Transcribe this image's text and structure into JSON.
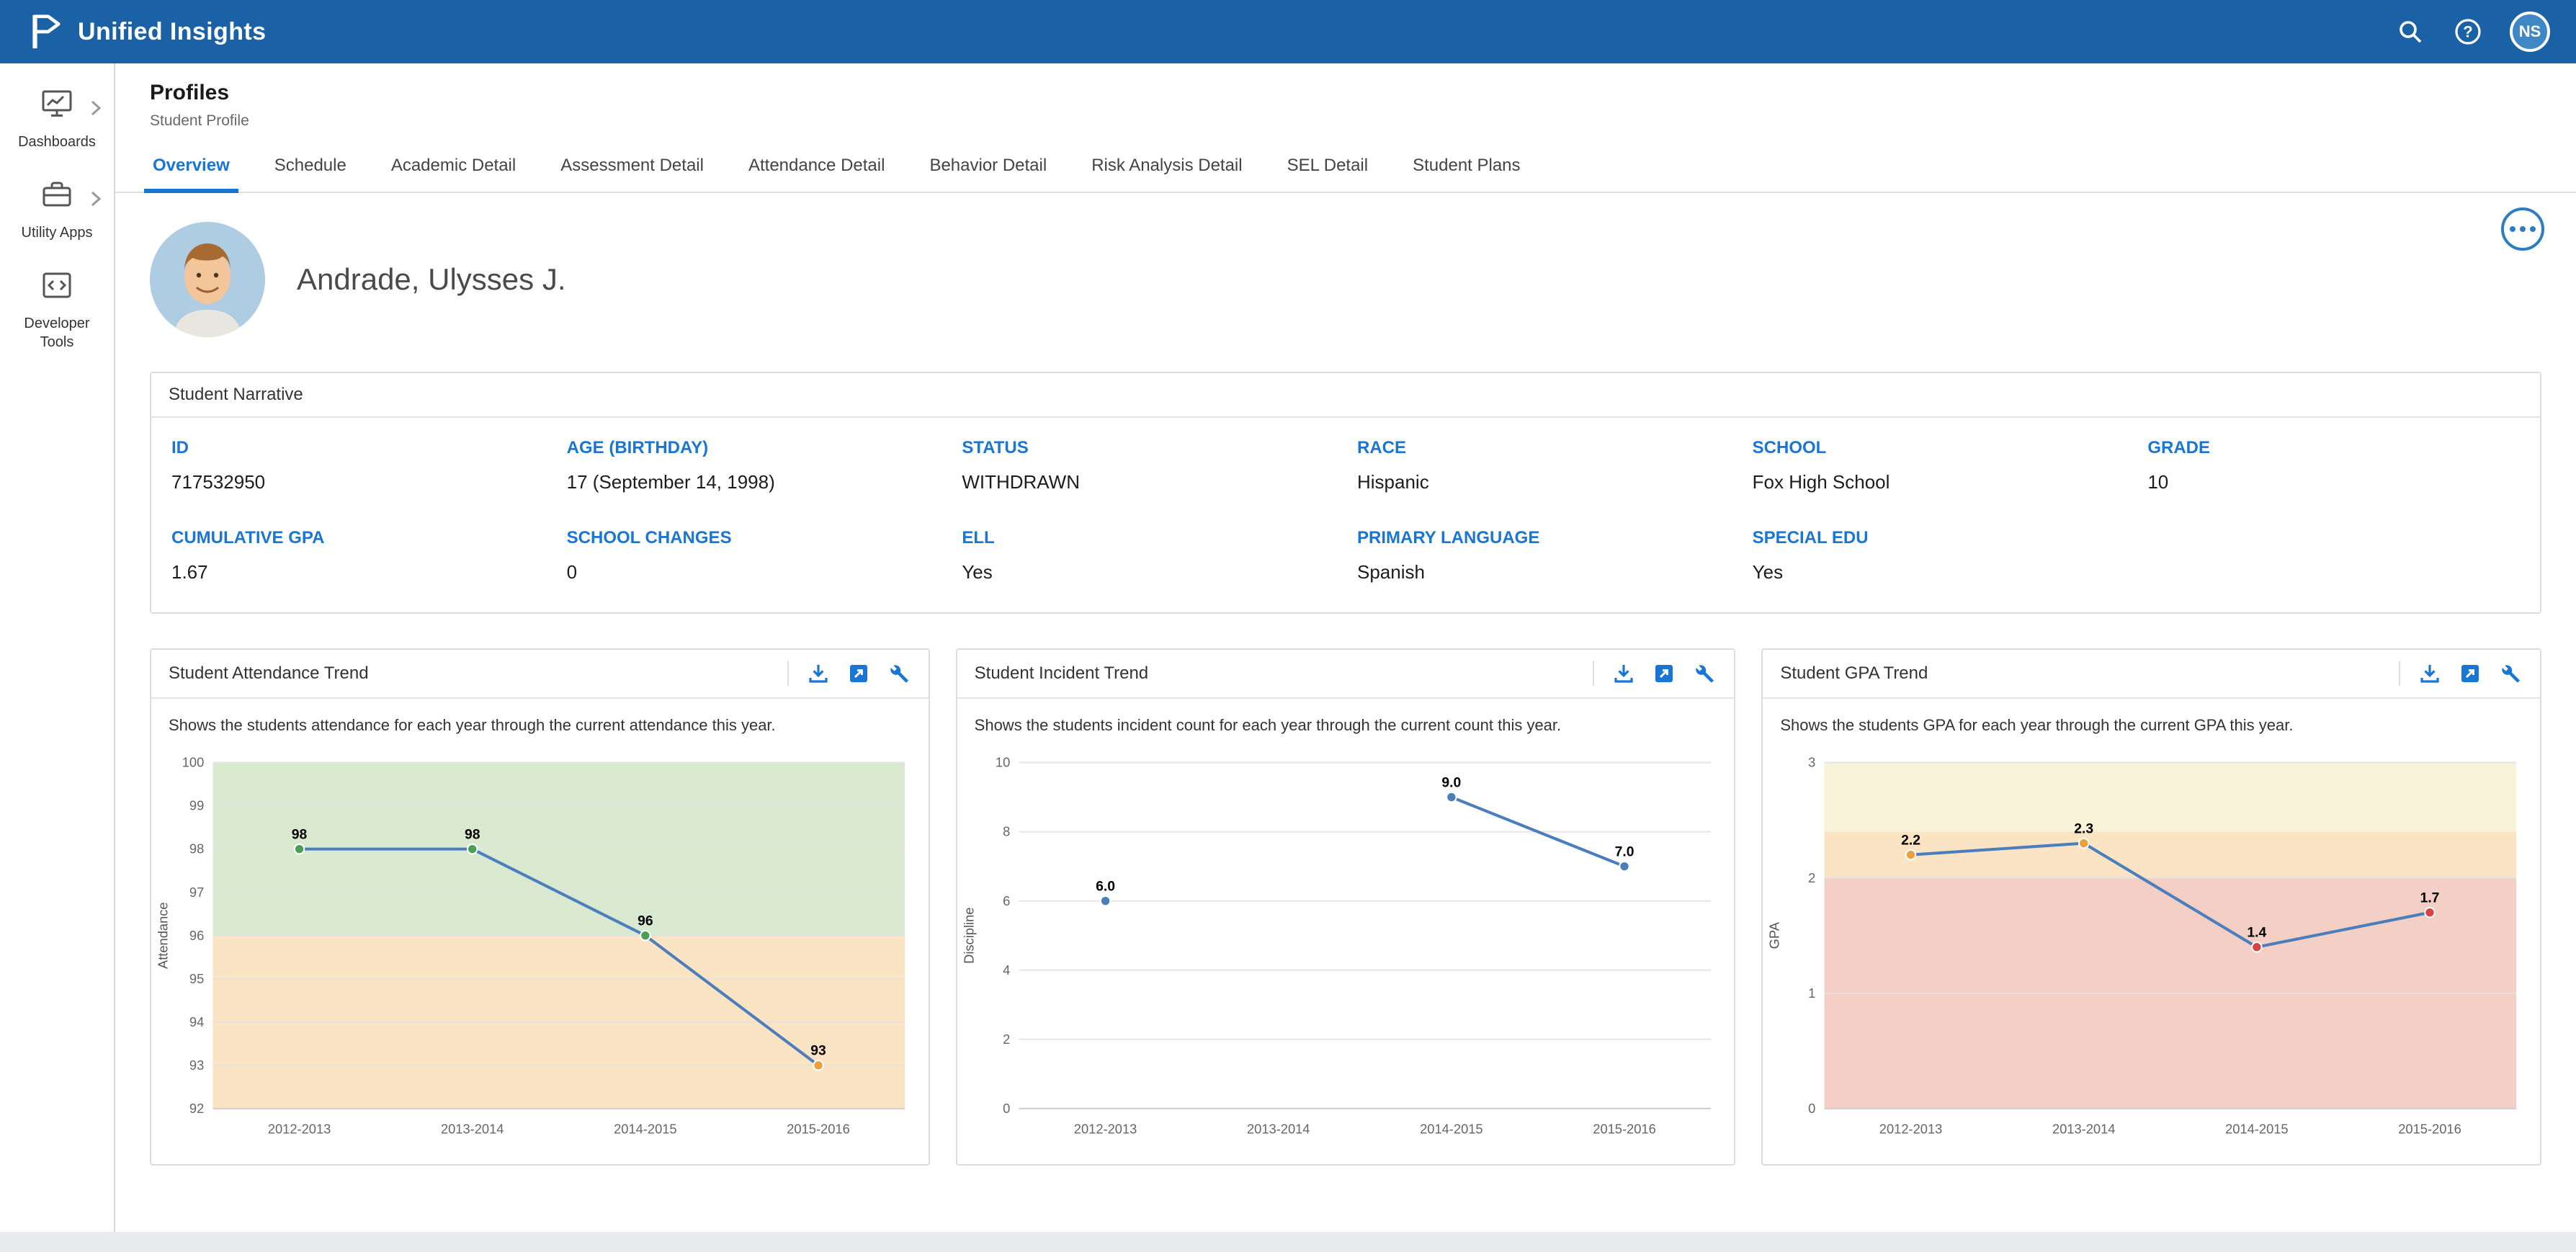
{
  "header": {
    "app_title": "Unified Insights",
    "avatar_initials": "NS",
    "icons": [
      "search-icon",
      "help-icon"
    ]
  },
  "colors": {
    "header_bar": "#1a61a5",
    "accent_blue": "#1976d2",
    "chart_line": "#4a7ebc",
    "band_green": "#d9e9d0",
    "band_yellow": "#f8f2d8",
    "band_orange": "#fbe4c3",
    "band_red": "#f4cfc5"
  },
  "sidebar": {
    "items": [
      {
        "label": "Dashboards",
        "icon": "dashboards-icon",
        "expandable": true
      },
      {
        "label": "Utility Apps",
        "icon": "utility-apps-icon",
        "expandable": true
      },
      {
        "label": "Developer Tools",
        "icon": "developer-tools-icon",
        "expandable": false
      }
    ]
  },
  "page": {
    "title": "Profiles",
    "subtitle": "Student Profile",
    "student_name": "Andrade, Ulysses J.",
    "tabs": [
      {
        "label": "Overview",
        "active": true
      },
      {
        "label": "Schedule",
        "active": false
      },
      {
        "label": "Academic Detail",
        "active": false
      },
      {
        "label": "Assessment Detail",
        "active": false
      },
      {
        "label": "Attendance Detail",
        "active": false
      },
      {
        "label": "Behavior Detail",
        "active": false
      },
      {
        "label": "Risk Analysis Detail",
        "active": false
      },
      {
        "label": "SEL Detail",
        "active": false
      },
      {
        "label": "Student Plans",
        "active": false
      }
    ]
  },
  "narrative": {
    "title": "Student Narrative",
    "fields": [
      {
        "label": "ID",
        "value": "717532950"
      },
      {
        "label": "AGE (BIRTHDAY)",
        "value": "17 (September 14, 1998)"
      },
      {
        "label": "STATUS",
        "value": "WITHDRAWN"
      },
      {
        "label": "RACE",
        "value": "Hispanic"
      },
      {
        "label": "SCHOOL",
        "value": "Fox High School"
      },
      {
        "label": "GRADE",
        "value": "10"
      },
      {
        "label": "CUMULATIVE GPA",
        "value": "1.67"
      },
      {
        "label": "SCHOOL CHANGES",
        "value": "0"
      },
      {
        "label": "ELL",
        "value": "Yes"
      },
      {
        "label": "PRIMARY LANGUAGE",
        "value": "Spanish"
      },
      {
        "label": "SPECIAL EDU",
        "value": "Yes"
      }
    ]
  },
  "card_toolbar_icons": [
    "download-icon",
    "export-icon",
    "customize-icon"
  ],
  "chart_data": [
    {
      "id": "attendance",
      "type": "line",
      "title": "Student Attendance Trend",
      "description": "Shows the students attendance for each year through the current attendance this year.",
      "categories": [
        "2012-2013",
        "2013-2014",
        "2014-2015",
        "2015-2016"
      ],
      "values": [
        98,
        98,
        96,
        93
      ],
      "labels": [
        "98",
        "98",
        "96",
        "93"
      ],
      "ylabel": "Attendance",
      "ylim": [
        92,
        100
      ],
      "yticks": [
        92,
        93,
        94,
        95,
        96,
        97,
        98,
        99,
        100
      ],
      "bands": [
        {
          "from": 96,
          "to": 100,
          "color": "#d9e9d0"
        },
        {
          "from": 92,
          "to": 96,
          "color": "#fbe4c3"
        }
      ],
      "line_color": "#4a7ebc",
      "marker_colors": [
        "#4c9e57",
        "#4c9e57",
        "#4c9e57",
        "#ee9f3c"
      ],
      "grid": true,
      "legend": "none"
    },
    {
      "id": "incident",
      "type": "line",
      "title": "Student Incident Trend",
      "description": "Shows the students incident count for each year through the current count this year.",
      "categories": [
        "2012-2013",
        "2013-2014",
        "2014-2015",
        "2015-2016"
      ],
      "values": [
        6,
        null,
        9,
        7
      ],
      "labels": [
        "6.0",
        null,
        "9.0",
        "7.0"
      ],
      "ylabel": "Discipline",
      "ylim": [
        0,
        10
      ],
      "yticks": [
        0,
        2,
        4,
        6,
        8,
        10
      ],
      "bands": [],
      "line_color": "#4a7ebc",
      "marker_colors": [
        "#4a7ebc",
        null,
        "#4a7ebc",
        "#4a7ebc"
      ],
      "grid": true,
      "legend": "none"
    },
    {
      "id": "gpa",
      "type": "line",
      "title": "Student GPA Trend",
      "description": "Shows the students GPA for each year through the current GPA this year.",
      "categories": [
        "2012-2013",
        "2013-2014",
        "2014-2015",
        "2015-2016"
      ],
      "values": [
        2.2,
        2.3,
        1.4,
        1.7
      ],
      "labels": [
        "2.2",
        "2.3",
        "1.4",
        "1.7"
      ],
      "ylabel": "GPA",
      "ylim": [
        0,
        3
      ],
      "yticks": [
        0,
        1,
        2,
        3
      ],
      "bands": [
        {
          "from": 2.4,
          "to": 3,
          "color": "#f8f2d8"
        },
        {
          "from": 2.0,
          "to": 2.4,
          "color": "#fbe4c3"
        },
        {
          "from": 0,
          "to": 2.0,
          "color": "#f4cfc5"
        }
      ],
      "line_color": "#4a7ebc",
      "marker_colors": [
        "#ee9f3c",
        "#ee9f3c",
        "#d64541",
        "#d64541"
      ],
      "grid": true,
      "legend": "none"
    }
  ]
}
